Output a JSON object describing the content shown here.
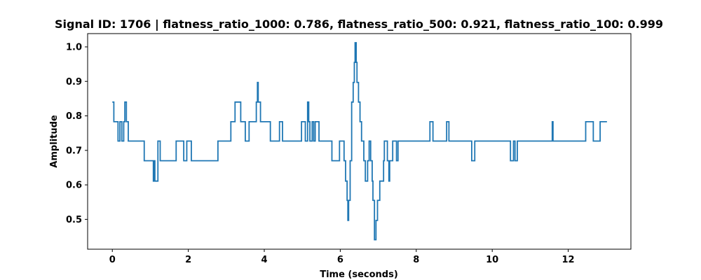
{
  "chart_data": {
    "type": "line",
    "title": "Signal ID: 1706 | flatness_ratio_1000: 0.786, flatness_ratio_500: 0.921, flatness_ratio_100: 0.999",
    "xlabel": "Time (seconds)",
    "ylabel": "Amplitude",
    "xlim": [
      -0.65,
      13.65
    ],
    "ylim": [
      0.4135,
      1.0385
    ],
    "xticks": [
      0,
      2,
      4,
      6,
      8,
      10,
      12
    ],
    "yticks": [
      0.5,
      0.6,
      0.7,
      0.8,
      0.9,
      1.0
    ],
    "xtick_labels": [
      "0",
      "2",
      "4",
      "6",
      "8",
      "10",
      "12"
    ],
    "ytick_labels": [
      "0.5",
      "0.6",
      "0.7",
      "0.8",
      "0.9",
      "1.0"
    ],
    "grid": false,
    "line_color": "#1f77b4",
    "series": [
      {
        "drawstyle": "steps",
        "x": [
          0.0,
          0.04,
          0.15,
          0.2,
          0.25,
          0.3,
          0.33,
          0.37,
          0.42,
          0.84,
          1.08,
          1.1,
          1.12,
          1.2,
          1.26,
          1.68,
          1.88,
          1.96,
          2.08,
          2.78,
          3.12,
          3.23,
          3.38,
          3.5,
          3.6,
          3.79,
          3.82,
          3.84,
          3.9,
          4.16,
          4.4,
          4.48,
          4.98,
          5.08,
          5.14,
          5.17,
          5.2,
          5.26,
          5.3,
          5.34,
          5.37,
          5.44,
          5.78,
          5.98,
          6.1,
          6.14,
          6.18,
          6.2,
          6.22,
          6.26,
          6.3,
          6.34,
          6.37,
          6.39,
          6.42,
          6.44,
          6.48,
          6.52,
          6.56,
          6.62,
          6.66,
          6.72,
          6.76,
          6.8,
          6.84,
          6.86,
          6.9,
          6.94,
          6.98,
          7.04,
          7.14,
          7.16,
          7.24,
          7.28,
          7.3,
          7.38,
          7.48,
          7.52,
          7.6,
          8.36,
          8.44,
          8.8,
          8.86,
          9.46,
          9.54,
          10.48,
          10.56,
          10.6,
          10.66,
          10.74,
          11.58,
          11.6,
          11.62,
          12.46,
          12.66,
          12.84,
          13.02
        ],
        "y": [
          0.84,
          0.783,
          0.727,
          0.783,
          0.727,
          0.783,
          0.84,
          0.783,
          0.727,
          0.67,
          0.611,
          0.67,
          0.611,
          0.727,
          0.67,
          0.727,
          0.67,
          0.727,
          0.67,
          0.727,
          0.783,
          0.84,
          0.783,
          0.727,
          0.783,
          0.84,
          0.897,
          0.84,
          0.783,
          0.727,
          0.783,
          0.727,
          0.783,
          0.727,
          0.84,
          0.783,
          0.727,
          0.783,
          0.727,
          0.783,
          0.783,
          0.727,
          0.67,
          0.727,
          0.67,
          0.611,
          0.555,
          0.497,
          0.555,
          0.67,
          0.84,
          0.897,
          0.955,
          1.012,
          0.955,
          0.897,
          0.84,
          0.783,
          0.727,
          0.67,
          0.611,
          0.67,
          0.727,
          0.67,
          0.611,
          0.555,
          0.441,
          0.497,
          0.555,
          0.611,
          0.67,
          0.727,
          0.67,
          0.611,
          0.67,
          0.727,
          0.67,
          0.727,
          0.727,
          0.783,
          0.727,
          0.783,
          0.727,
          0.67,
          0.727,
          0.67,
          0.727,
          0.67,
          0.727,
          0.727,
          0.783,
          0.727,
          0.727,
          0.783,
          0.727,
          0.783,
          0.783
        ]
      }
    ]
  }
}
